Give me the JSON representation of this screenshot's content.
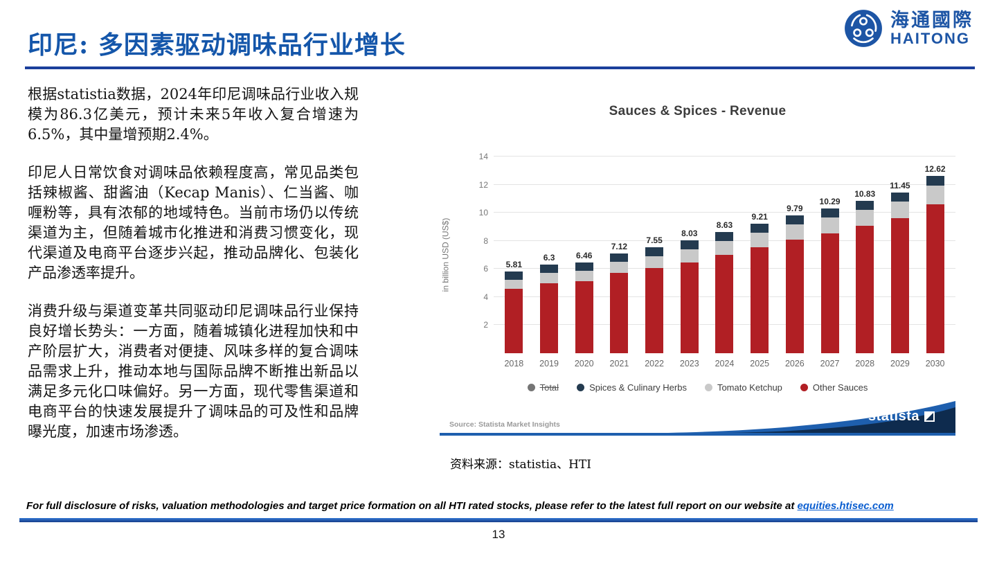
{
  "page": {
    "title": "印尼: 多因素驱动调味品行业增长",
    "source_note": "资料来源：statistia、HTI",
    "footer_text": "For full disclosure of risks, valuation methodologies and target price formation on all HTI rated stocks, please refer to the latest full report on our website at ",
    "footer_link": "equities.htisec.com",
    "page_number": "13"
  },
  "logo": {
    "cn": "海通國際",
    "en": "HAITONG"
  },
  "paragraphs": [
    "根据statistia数据，2024年印尼调味品行业收入规模为86.3亿美元，预计未来5年收入复合增速为6.5%，其中量增预期2.4%。",
    "印尼人日常饮食对调味品依赖程度高，常见品类包括辣椒酱、甜酱油（Kecap Manis）、仁当酱、咖喱粉等，具有浓郁的地域特色。当前市场仍以传统渠道为主，但随着城市化推进和消费习惯变化，现代渠道及电商平台逐步兴起，推动品牌化、包装化产品渗透率提升。",
    "消费升级与渠道变革共同驱动印尼调味品行业保持良好增长势头：一方面，随着城镇化进程加快和中产阶层扩大，消费者对便捷、风味多样的复合调味品需求上升，推动本地与国际品牌不断推出新品以满足多元化口味偏好。另一方面，现代零售渠道和电商平台的快速发展提升了调味品的可及性和品牌曝光度，加速市场渗透。"
  ],
  "chart_data": {
    "type": "bar",
    "stacked": true,
    "title": "Sauces & Spices - Revenue",
    "ylabel": "in billion USD (US$)",
    "ylim": [
      0,
      14
    ],
    "yticks": [
      2,
      4,
      6,
      8,
      10,
      12,
      14
    ],
    "grid": true,
    "legend_position": "bottom",
    "categories": [
      "2018",
      "2019",
      "2020",
      "2021",
      "2022",
      "2023",
      "2024",
      "2025",
      "2026",
      "2027",
      "2028",
      "2029",
      "2030"
    ],
    "totals": [
      5.81,
      6.3,
      6.46,
      7.12,
      7.55,
      8.03,
      8.63,
      9.21,
      9.79,
      10.29,
      10.83,
      11.45,
      12.62
    ],
    "series": [
      {
        "name": "Other Sauces",
        "color": "#b11f24",
        "values": [
          4.6,
          5.0,
          5.12,
          5.7,
          6.05,
          6.45,
          7.0,
          7.55,
          8.1,
          8.55,
          9.05,
          9.6,
          10.6
        ]
      },
      {
        "name": "Tomato Ketchup",
        "color": "#c9c9c9",
        "values": [
          0.65,
          0.7,
          0.73,
          0.8,
          0.87,
          0.94,
          1.0,
          1.05,
          1.08,
          1.12,
          1.15,
          1.2,
          1.35
        ]
      },
      {
        "name": "Spices & Culinary Herbs",
        "color": "#243b50",
        "values": [
          0.56,
          0.6,
          0.61,
          0.62,
          0.63,
          0.64,
          0.63,
          0.61,
          0.61,
          0.62,
          0.63,
          0.65,
          0.67
        ]
      }
    ],
    "legend": [
      {
        "label": "Total",
        "color": "#757575",
        "strikethrough": true
      },
      {
        "label": "Spices & Culinary Herbs",
        "color": "#243b50"
      },
      {
        "label": "Tomato Ketchup",
        "color": "#c9c9c9"
      },
      {
        "label": "Other Sauces",
        "color": "#b11f24"
      }
    ],
    "source": "Source: Statista Market Insights",
    "brand": "statista"
  }
}
